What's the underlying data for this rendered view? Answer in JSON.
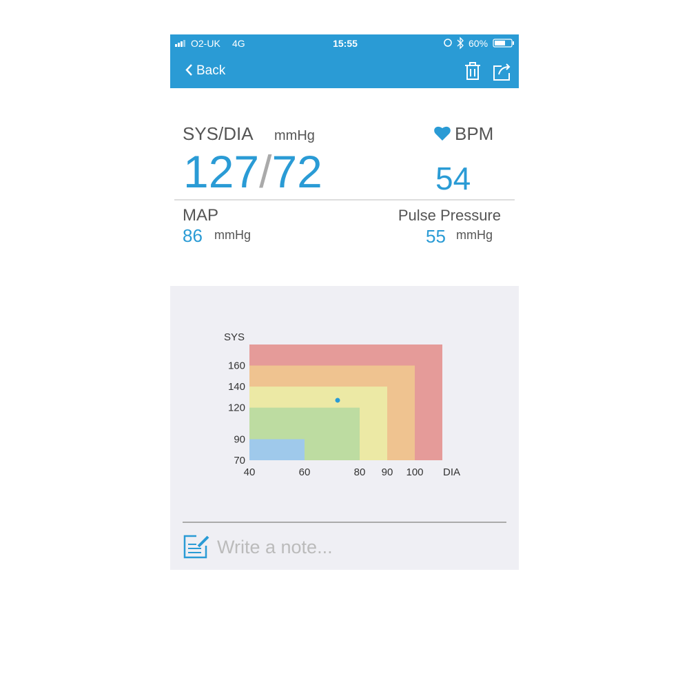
{
  "status_bar": {
    "carrier": "O2-UK",
    "network": "4G",
    "time": "15:55",
    "battery": "60%"
  },
  "nav": {
    "back": "Back"
  },
  "reading": {
    "sys_dia_label": "SYS/DIA",
    "unit": "mmHg",
    "sys": "127",
    "separator": "/",
    "dia": "72",
    "bpm_label": "BPM",
    "bpm": "54"
  },
  "map": {
    "label": "MAP",
    "value": "86",
    "unit": "mmHg"
  },
  "pulse_pressure": {
    "label": "Pulse Pressure",
    "value": "55",
    "unit": "mmHg"
  },
  "chart_data": {
    "type": "zone",
    "x_label": "DIA",
    "y_label": "SYS",
    "xlim": [
      40,
      110
    ],
    "ylim": [
      70,
      180
    ],
    "xticks": [
      40,
      60,
      80,
      90,
      100
    ],
    "yticks": [
      70,
      90,
      120,
      140,
      160
    ],
    "zones": [
      {
        "x": 110,
        "y": 180,
        "color": "#e59b99"
      },
      {
        "x": 100,
        "y": 160,
        "color": "#efc390"
      },
      {
        "x": 90,
        "y": 140,
        "color": "#ece9a5"
      },
      {
        "x": 80,
        "y": 120,
        "color": "#bddca1"
      },
      {
        "x": 60,
        "y": 90,
        "color": "#9fc9eb"
      }
    ],
    "point": {
      "x": 72,
      "y": 127,
      "color": "#2a9bd5"
    }
  },
  "note": {
    "placeholder": "Write a note..."
  }
}
